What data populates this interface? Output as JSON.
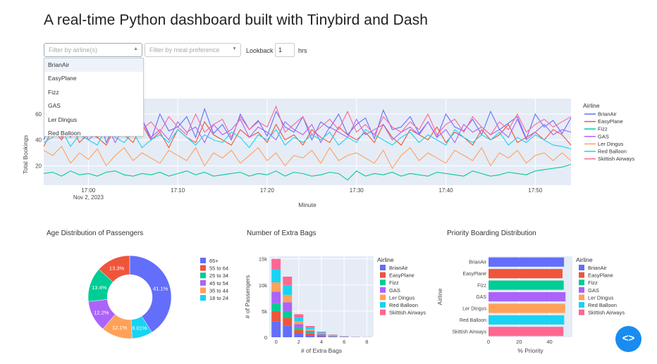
{
  "page": {
    "title": "A real-time Python dashboard built with Tinybird and Dash"
  },
  "filters": {
    "airline_placeholder": "Filter by airline(s)",
    "meal_placeholder": "Filter by meal preference",
    "lookback_label": "Lookback",
    "lookback_value": "1",
    "lookback_unit": "hrs",
    "airline_options": [
      "BrianAir",
      "EasyPlane",
      "Fizz",
      "GAS",
      "Ler Dingus",
      "Red Balloon"
    ],
    "highlighted_option": "BrianAir"
  },
  "colors": {
    "BrianAir": "#636efa",
    "EasyPlane": "#ef553b",
    "Fizz": "#00cc96",
    "GAS": "#ab63fa",
    "Ler Dingus": "#ffa15a",
    "Red Balloon": "#19d3f3",
    "Skittish Airways": "#ff6692",
    "plot_bg": "#e5ecf6"
  },
  "chart_data": [
    {
      "type": "line",
      "xlabel": "Minute",
      "ylabel": "Total Bookings",
      "x_ticks": [
        "17:00",
        "17:10",
        "17:20",
        "17:30",
        "17:40",
        "17:50"
      ],
      "x_date_label": "Nov 2, 2023",
      "x_range_minutes": [
        "16:55",
        "17:54"
      ],
      "y_ticks": [
        20,
        40,
        60
      ],
      "ylim": [
        5,
        72
      ],
      "legend_title": "Airline",
      "legend_position": "right",
      "series": [
        {
          "name": "BrianAir",
          "values": [
            40,
            58,
            50,
            42,
            55,
            45,
            62,
            38,
            52,
            48,
            44,
            56,
            40,
            60,
            47,
            50,
            58,
            42,
            64,
            45,
            52,
            40,
            60,
            48,
            55,
            43,
            62,
            50,
            46,
            58,
            40,
            54,
            49,
            60,
            44,
            52,
            57,
            41,
            63,
            48,
            50,
            58,
            45,
            54,
            42,
            60,
            50,
            47,
            56,
            44,
            62,
            48,
            53,
            58,
            41,
            60,
            50,
            55,
            45,
            57
          ]
        },
        {
          "name": "EasyPlane",
          "values": [
            35,
            48,
            40,
            52,
            38,
            45,
            42,
            36,
            50,
            44,
            38,
            52,
            40,
            46,
            34,
            48,
            42,
            38,
            54,
            44,
            40,
            36,
            48,
            42,
            46,
            38,
            52,
            40,
            44,
            36,
            48,
            42,
            38,
            50,
            44,
            40,
            46,
            38,
            52,
            42,
            36,
            48,
            44,
            40,
            50,
            38,
            46,
            42,
            36,
            48,
            40,
            44,
            52,
            38,
            42,
            46,
            40,
            48,
            44,
            36
          ]
        },
        {
          "name": "Fizz",
          "values": [
            14,
            15,
            12,
            16,
            13,
            14,
            12,
            15,
            16,
            13,
            12,
            14,
            13,
            15,
            12,
            14,
            16,
            13,
            15,
            12,
            13,
            14,
            15,
            12,
            14,
            13,
            16,
            12,
            15,
            14,
            12,
            13,
            15,
            14,
            9,
            16,
            12,
            14,
            13,
            15,
            12,
            14,
            13,
            12,
            15,
            14,
            13,
            12,
            16,
            14,
            12,
            13,
            15,
            14,
            13,
            16,
            17,
            18,
            19,
            21
          ]
        },
        {
          "name": "GAS",
          "values": [
            45,
            50,
            42,
            48,
            55,
            40,
            46,
            52,
            38,
            50,
            44,
            56,
            42,
            48,
            40,
            54,
            46,
            50,
            38,
            52,
            44,
            48,
            56,
            42,
            50,
            46,
            40,
            54,
            48,
            44,
            52,
            38,
            50,
            46,
            42,
            56,
            44,
            48,
            52,
            40,
            46,
            50,
            44,
            54,
            42,
            48,
            38,
            52,
            46,
            50,
            44,
            48,
            42,
            56,
            40,
            46,
            52,
            44,
            48,
            46
          ]
        },
        {
          "name": "Ler Dingus",
          "values": [
            32,
            28,
            35,
            22,
            30,
            25,
            33,
            20,
            28,
            34,
            24,
            30,
            26,
            22,
            32,
            28,
            24,
            34,
            20,
            30,
            26,
            32,
            22,
            28,
            34,
            24,
            30,
            20,
            28,
            26,
            32,
            22,
            34,
            24,
            28,
            30,
            26,
            22,
            32,
            18,
            28,
            34,
            24,
            30,
            26,
            22,
            32,
            28,
            24,
            34,
            20,
            30,
            26,
            32,
            22,
            28,
            30,
            24,
            30,
            24
          ]
        },
        {
          "name": "Red Balloon",
          "values": [
            38,
            42,
            48,
            35,
            44,
            40,
            36,
            50,
            42,
            38,
            46,
            34,
            40,
            44,
            38,
            48,
            42,
            36,
            44,
            40,
            38,
            46,
            42,
            34,
            44,
            40,
            48,
            36,
            42,
            38,
            44,
            40,
            46,
            36,
            42,
            38,
            48,
            44,
            40,
            36,
            42,
            46,
            38,
            44,
            40,
            36,
            48,
            42,
            38,
            44,
            40,
            46,
            36,
            42,
            38,
            44,
            40,
            36,
            35,
            33
          ]
        },
        {
          "name": "Skittish Airways",
          "values": [
            55,
            48,
            60,
            45,
            52,
            58,
            42,
            50,
            56,
            44,
            62,
            48,
            54,
            46,
            58,
            50,
            44,
            60,
            46,
            52,
            56,
            42,
            58,
            48,
            54,
            50,
            66,
            46,
            52,
            58,
            44,
            50,
            56,
            48,
            62,
            46,
            52,
            44,
            58,
            50,
            46,
            54,
            48,
            60,
            44,
            52,
            56,
            46,
            58,
            50,
            44,
            54,
            48,
            60,
            46,
            52,
            56,
            50,
            54,
            58
          ]
        }
      ]
    },
    {
      "type": "pie",
      "title": "Age Distribution of Passengers",
      "legend_position": "right",
      "slices": [
        {
          "label": "65+",
          "value": 41.1,
          "text": "41.1%"
        },
        {
          "label": "55 to 64",
          "value": 13.3,
          "text": "13.3%"
        },
        {
          "label": "25 to 34",
          "value": 13.4,
          "text": "13.4%"
        },
        {
          "label": "45 to 54",
          "value": 12.2,
          "text": "12.2%"
        },
        {
          "label": "35 to 44",
          "value": 12.1,
          "text": "12.1%"
        },
        {
          "label": "18 to 24",
          "value": 8.01,
          "text": "8.01%"
        }
      ],
      "slice_colors": [
        "#636efa",
        "#ef553b",
        "#00cc96",
        "#ab63fa",
        "#ffa15a",
        "#19d3f3"
      ],
      "slice_order": [
        "65+",
        "18 to 24",
        "35 to 44",
        "45 to 54",
        "25 to 34",
        "55 to 64"
      ]
    },
    {
      "type": "bar",
      "stacked": true,
      "title": "Number of Extra Bags",
      "xlabel": "# of Extra Bags",
      "ylabel": "# of Passengers",
      "x_ticks": [
        0,
        2,
        4,
        6,
        8
      ],
      "y_ticks": [
        "0",
        "5k",
        "10k",
        "15k"
      ],
      "ylim": [
        0,
        15500
      ],
      "xlim": [
        -0.6,
        8.6
      ],
      "legend_title": "Airline",
      "legend_position": "right",
      "categories": [
        0,
        1,
        2,
        3,
        4,
        5,
        6,
        7,
        8
      ],
      "series": [
        {
          "name": "BrianAir",
          "values": [
            3000,
            2200,
            800,
            400,
            200,
            100,
            50,
            20,
            10
          ]
        },
        {
          "name": "EasyPlane",
          "values": [
            2000,
            1500,
            600,
            300,
            150,
            80,
            30,
            15,
            5
          ]
        },
        {
          "name": "Fizz",
          "values": [
            1500,
            1300,
            500,
            250,
            120,
            60,
            25,
            10,
            5
          ]
        },
        {
          "name": "GAS",
          "values": [
            2200,
            1700,
            600,
            300,
            150,
            70,
            30,
            12,
            5
          ]
        },
        {
          "name": "Ler Dingus",
          "values": [
            1800,
            1400,
            550,
            250,
            130,
            60,
            25,
            10,
            5
          ]
        },
        {
          "name": "Red Balloon",
          "values": [
            2500,
            1900,
            700,
            350,
            170,
            80,
            30,
            12,
            5
          ]
        },
        {
          "name": "Skittish Airways",
          "values": [
            2000,
            1600,
            650,
            300,
            150,
            70,
            30,
            12,
            5
          ]
        }
      ]
    },
    {
      "type": "bar",
      "orientation": "horizontal",
      "title": "Priority Boarding Distribution",
      "xlabel": "% Priority",
      "ylabel": "Airline",
      "x_ticks": [
        0,
        20,
        40
      ],
      "xlim": [
        0,
        55
      ],
      "legend_title": "Airline",
      "legend_position": "right",
      "categories": [
        "BrianAir",
        "EasyPlane",
        "Fizz",
        "GAS",
        "Ler Dingus",
        "Red Balloon",
        "Skittish Airways"
      ],
      "values": [
        49.5,
        48.5,
        49.3,
        50.5,
        50.2,
        49.6,
        49.1
      ]
    }
  ]
}
